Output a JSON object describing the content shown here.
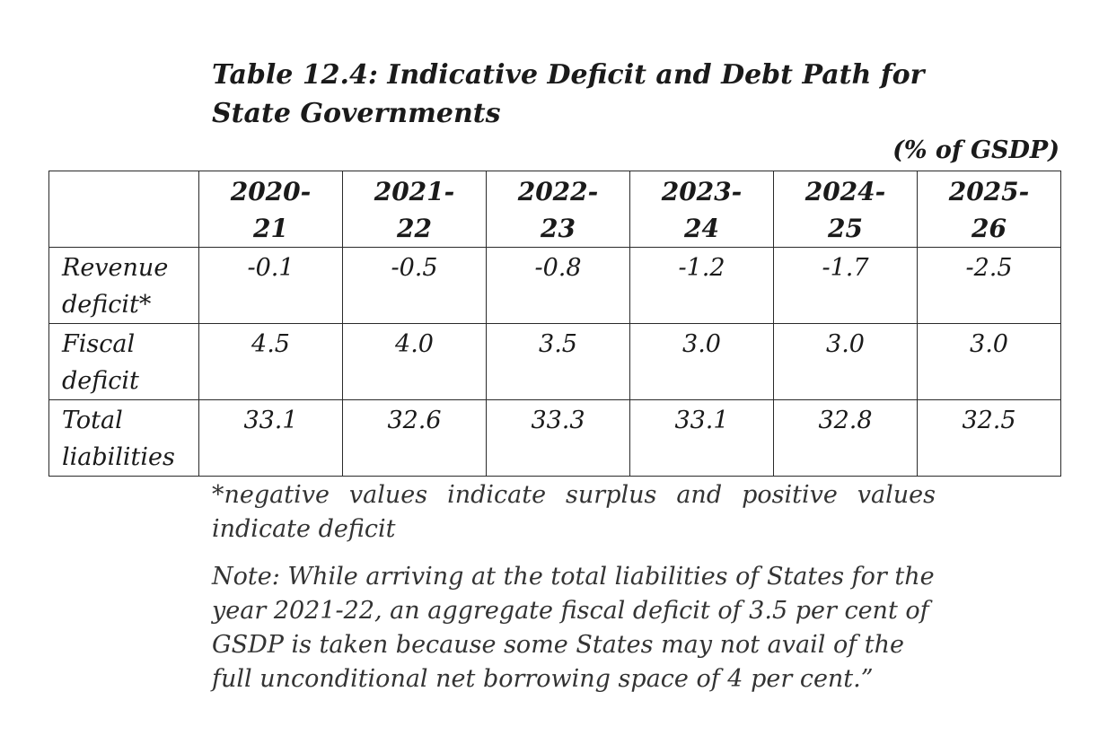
{
  "document": {
    "title_line1": "Table 12.4: Indicative Deficit and Debt Path for",
    "title_line2": "State Governments",
    "unit": "(% of GSDP)",
    "table": {
      "header_blank": "",
      "years": [
        {
          "line1": "2020-",
          "line2": "21"
        },
        {
          "line1": "2021-",
          "line2": "22"
        },
        {
          "line1": "2022-",
          "line2": "23"
        },
        {
          "line1": "2023-",
          "line2": "24"
        },
        {
          "line1": "2024-",
          "line2": "25"
        },
        {
          "line1": "2025-",
          "line2": "26"
        }
      ],
      "rows": [
        {
          "label_line1": "Revenue",
          "label_line2": "deficit*",
          "values": [
            "-0.1",
            "-0.5",
            "-0.8",
            "-1.2",
            "-1.7",
            "-2.5"
          ]
        },
        {
          "label_line1": "Fiscal",
          "label_line2": "deficit",
          "values": [
            "4.5",
            "4.0",
            "3.5",
            "3.0",
            "3.0",
            "3.0"
          ]
        },
        {
          "label_line1": "Total",
          "label_line2": "liabilities",
          "values": [
            "33.1",
            "32.6",
            "33.3",
            "33.1",
            "32.8",
            "32.5"
          ]
        }
      ]
    },
    "footnote": "*negative values indicate surplus and positive values indicate deficit",
    "note": "Note: While arriving at the total liabilities of States for the year 2021-22, an aggregate fiscal deficit of 3.5 per cent of GSDP is taken because some States may not avail of the full unconditional net borrowing space of 4 per cent.”"
  }
}
